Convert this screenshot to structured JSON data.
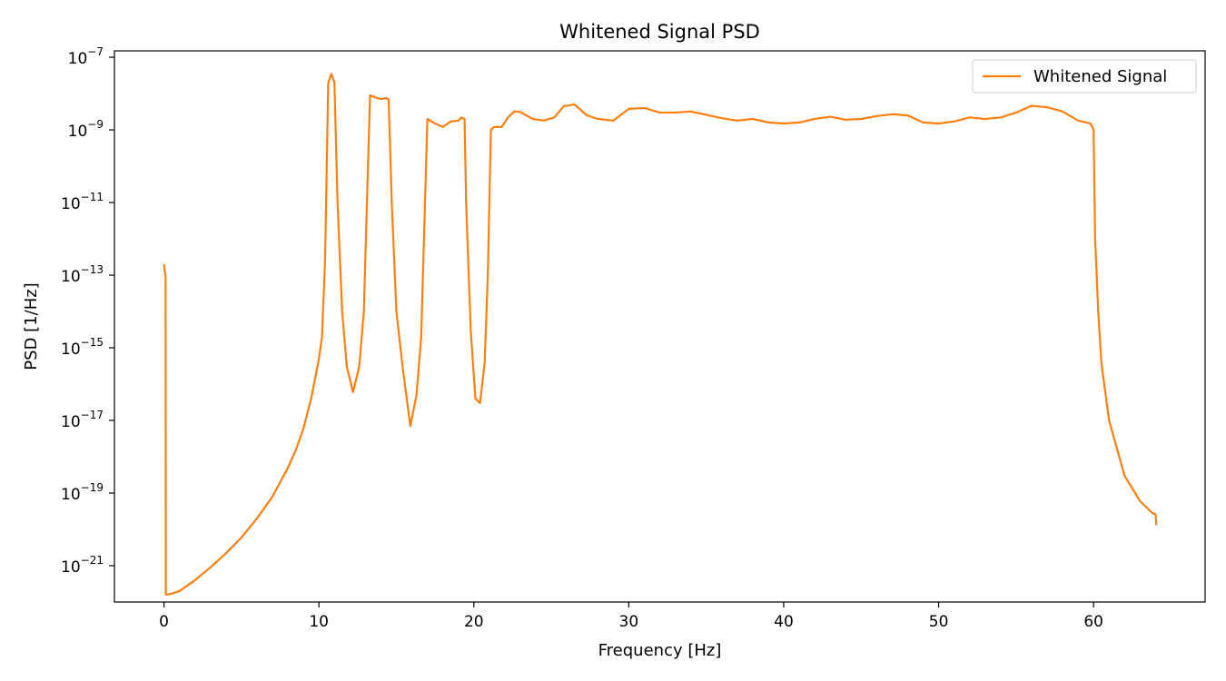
{
  "chart_data": {
    "type": "line",
    "title": "Whitened Signal PSD",
    "xlabel": "Frequency [Hz]",
    "ylabel": "PSD [1/Hz]",
    "y_scale": "log",
    "xlim": [
      -3.2,
      67.2
    ],
    "ylim": [
      1e-22,
      1.5e-07
    ],
    "x_ticks": [
      0,
      10,
      20,
      30,
      40,
      50,
      60
    ],
    "y_ticks": [
      {
        "value": 1e-21,
        "base": "10",
        "exp": "−21"
      },
      {
        "value": 1e-19,
        "base": "10",
        "exp": "−19"
      },
      {
        "value": 1e-17,
        "base": "10",
        "exp": "−17"
      },
      {
        "value": 1e-15,
        "base": "10",
        "exp": "−15"
      },
      {
        "value": 1e-13,
        "base": "10",
        "exp": "−13"
      },
      {
        "value": 1e-11,
        "base": "10",
        "exp": "−11"
      },
      {
        "value": 1e-09,
        "base": "10",
        "exp": "−9"
      },
      {
        "value": 1e-07,
        "base": "10",
        "exp": "−7"
      }
    ],
    "grid": false,
    "legend_position": "top-right",
    "series": [
      {
        "name": "Whitened Signal",
        "color": "#ff7f0e",
        "x": [
          0,
          0.05,
          0.1,
          0.12,
          0.2,
          0.5,
          1,
          2,
          3,
          4,
          5,
          6,
          7,
          8,
          8.5,
          9,
          9.5,
          10,
          10.2,
          10.4,
          10.6,
          10.8,
          11,
          11.2,
          11.5,
          11.8,
          12.2,
          12.6,
          12.9,
          13.1,
          13.3,
          13.6,
          14,
          14.3,
          14.5,
          14.7,
          15,
          15.4,
          15.9,
          16.3,
          16.6,
          16.8,
          17,
          17.5,
          18,
          18.5,
          19,
          19.2,
          19.4,
          19.5,
          19.8,
          20.1,
          20.4,
          20.7,
          20.9,
          21.1,
          21.3,
          21.8,
          22.2,
          22.6,
          23,
          23.8,
          24.5,
          25.2,
          25.8,
          26.5,
          27.3,
          28,
          29,
          30,
          31,
          32,
          33,
          34,
          35,
          36,
          37,
          38,
          39,
          40,
          41,
          42,
          43,
          44,
          45,
          46,
          47,
          48,
          49,
          50,
          51,
          52,
          53,
          54,
          55,
          56,
          57,
          58,
          59,
          59.8,
          60,
          60.1,
          60.3,
          60.5,
          61,
          62,
          63,
          63.8,
          64,
          64.05
        ],
        "values": [
          2e-13,
          1.2e-13,
          1e-13,
          1.6e-22,
          1.6e-22,
          1.7e-22,
          2e-22,
          4e-22,
          9e-22,
          2.2e-21,
          6e-21,
          2e-20,
          8e-20,
          5e-19,
          1.5e-18,
          6e-18,
          4e-17,
          5e-16,
          2e-15,
          3e-13,
          2e-08,
          3.5e-08,
          2e-08,
          1e-11,
          1e-14,
          3e-16,
          6e-17,
          3e-16,
          1e-14,
          1e-11,
          9e-09,
          8e-09,
          7e-09,
          7.5e-09,
          7e-09,
          1e-11,
          1e-14,
          3e-16,
          7e-18,
          5e-17,
          2e-15,
          2e-12,
          2e-09,
          1.5e-09,
          1.2e-09,
          1.7e-09,
          1.8e-09,
          2.2e-09,
          2e-09,
          1e-11,
          3e-15,
          4e-17,
          3e-17,
          4e-16,
          1e-13,
          1e-09,
          1.2e-09,
          1.2e-09,
          2.2e-09,
          3.2e-09,
          3.1e-09,
          2e-09,
          1.8e-09,
          2.2e-09,
          4.5e-09,
          5e-09,
          2.5e-09,
          2e-09,
          1.8e-09,
          3.8e-09,
          4e-09,
          3e-09,
          3e-09,
          3.2e-09,
          2.6e-09,
          2.1e-09,
          1.8e-09,
          2e-09,
          1.6e-09,
          1.5e-09,
          1.6e-09,
          2e-09,
          2.3e-09,
          1.9e-09,
          2e-09,
          2.4e-09,
          2.7e-09,
          2.5e-09,
          1.6e-09,
          1.5e-09,
          1.7e-09,
          2.2e-09,
          2e-09,
          2.2e-09,
          3e-09,
          4.6e-09,
          4.2e-09,
          3.2e-09,
          1.8e-09,
          1.5e-09,
          1e-09,
          1e-12,
          1e-14,
          4e-16,
          1e-17,
          3e-19,
          6e-20,
          2.8e-20,
          2.6e-20,
          1.3e-20
        ]
      }
    ]
  }
}
